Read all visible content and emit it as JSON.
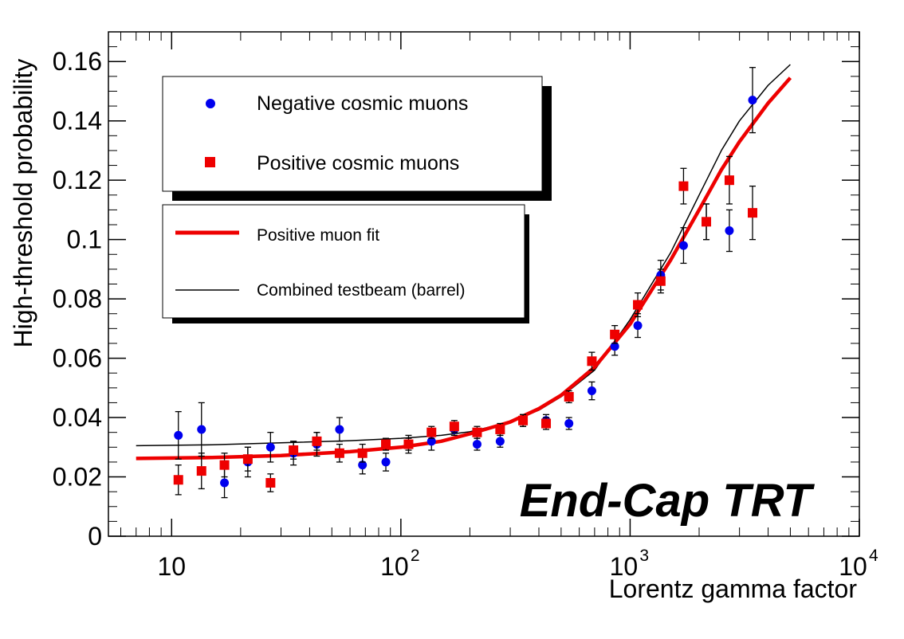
{
  "chart_data": {
    "type": "scatter",
    "xscale": "log",
    "xlim": [
      5.3,
      10000
    ],
    "ylim": [
      0,
      0.17
    ],
    "xlabel": "Lorentz gamma factor",
    "ylabel": "High-threshold probability",
    "annotation": "End-Cap TRT",
    "y_ticks": [
      {
        "value": 0,
        "label": "0"
      },
      {
        "value": 0.02,
        "label": "0.02"
      },
      {
        "value": 0.04,
        "label": "0.04"
      },
      {
        "value": 0.06,
        "label": "0.06"
      },
      {
        "value": 0.08,
        "label": "0.08"
      },
      {
        "value": 0.1,
        "label": "0.1"
      },
      {
        "value": 0.12,
        "label": "0.12"
      },
      {
        "value": 0.14,
        "label": "0.14"
      },
      {
        "value": 0.16,
        "label": "0.16"
      }
    ],
    "x_ticks": [
      {
        "value": 10,
        "base": "10",
        "exp": ""
      },
      {
        "value": 100,
        "base": "10",
        "exp": "2"
      },
      {
        "value": 1000,
        "base": "10",
        "exp": "3"
      },
      {
        "value": 10000,
        "base": "10",
        "exp": "4"
      }
    ],
    "legend_markers": [
      {
        "label": "Negative cosmic muons",
        "marker": "circle",
        "color": "#0000ee"
      },
      {
        "label": "Positive cosmic muons",
        "marker": "square",
        "color": "#ee0000"
      }
    ],
    "legend_lines": [
      {
        "label": "Positive muon fit",
        "color": "#ee0000",
        "width": "thick"
      },
      {
        "label": "Combined testbeam (barrel)",
        "color": "#000000",
        "width": "thin"
      }
    ],
    "series": [
      {
        "name": "Negative cosmic muons",
        "marker": "circle",
        "color": "#0000ee",
        "points": [
          {
            "x": 10.7,
            "y": 0.034,
            "err": 0.008
          },
          {
            "x": 13.5,
            "y": 0.036,
            "err": 0.009
          },
          {
            "x": 17.0,
            "y": 0.018,
            "err": 0.005
          },
          {
            "x": 21.5,
            "y": 0.025,
            "err": 0.005
          },
          {
            "x": 27.0,
            "y": 0.03,
            "err": 0.005
          },
          {
            "x": 34.0,
            "y": 0.028,
            "err": 0.004
          },
          {
            "x": 43.0,
            "y": 0.031,
            "err": 0.004
          },
          {
            "x": 54.0,
            "y": 0.036,
            "err": 0.004
          },
          {
            "x": 68.0,
            "y": 0.024,
            "err": 0.003
          },
          {
            "x": 86.0,
            "y": 0.025,
            "err": 0.003
          },
          {
            "x": 108,
            "y": 0.031,
            "err": 0.003
          },
          {
            "x": 136,
            "y": 0.032,
            "err": 0.003
          },
          {
            "x": 171,
            "y": 0.036,
            "err": 0.002
          },
          {
            "x": 215,
            "y": 0.031,
            "err": 0.002
          },
          {
            "x": 271,
            "y": 0.032,
            "err": 0.002
          },
          {
            "x": 341,
            "y": 0.039,
            "err": 0.002
          },
          {
            "x": 430,
            "y": 0.039,
            "err": 0.002
          },
          {
            "x": 541,
            "y": 0.038,
            "err": 0.002
          },
          {
            "x": 681,
            "y": 0.049,
            "err": 0.003
          },
          {
            "x": 857,
            "y": 0.064,
            "err": 0.003
          },
          {
            "x": 1080,
            "y": 0.071,
            "err": 0.004
          },
          {
            "x": 1360,
            "y": 0.088,
            "err": 0.005
          },
          {
            "x": 1710,
            "y": 0.098,
            "err": 0.006
          },
          {
            "x": 2150,
            "y": 0.106,
            "err": 0.006
          },
          {
            "x": 2710,
            "y": 0.103,
            "err": 0.007
          },
          {
            "x": 3420,
            "y": 0.147,
            "err": 0.011
          }
        ]
      },
      {
        "name": "Positive cosmic muons",
        "marker": "square",
        "color": "#ee0000",
        "points": [
          {
            "x": 10.7,
            "y": 0.019,
            "err": 0.005
          },
          {
            "x": 13.5,
            "y": 0.022,
            "err": 0.006
          },
          {
            "x": 17.0,
            "y": 0.024,
            "err": 0.004
          },
          {
            "x": 21.5,
            "y": 0.026,
            "err": 0.004
          },
          {
            "x": 27.0,
            "y": 0.018,
            "err": 0.003
          },
          {
            "x": 34.0,
            "y": 0.029,
            "err": 0.003
          },
          {
            "x": 43.0,
            "y": 0.032,
            "err": 0.003
          },
          {
            "x": 54.0,
            "y": 0.028,
            "err": 0.003
          },
          {
            "x": 68.0,
            "y": 0.028,
            "err": 0.003
          },
          {
            "x": 86.0,
            "y": 0.031,
            "err": 0.002
          },
          {
            "x": 108,
            "y": 0.031,
            "err": 0.002
          },
          {
            "x": 136,
            "y": 0.035,
            "err": 0.002
          },
          {
            "x": 171,
            "y": 0.037,
            "err": 0.002
          },
          {
            "x": 215,
            "y": 0.035,
            "err": 0.002
          },
          {
            "x": 271,
            "y": 0.036,
            "err": 0.002
          },
          {
            "x": 341,
            "y": 0.039,
            "err": 0.002
          },
          {
            "x": 430,
            "y": 0.038,
            "err": 0.002
          },
          {
            "x": 541,
            "y": 0.047,
            "err": 0.002
          },
          {
            "x": 681,
            "y": 0.059,
            "err": 0.003
          },
          {
            "x": 857,
            "y": 0.068,
            "err": 0.003
          },
          {
            "x": 1080,
            "y": 0.078,
            "err": 0.004
          },
          {
            "x": 1360,
            "y": 0.086,
            "err": 0.004
          },
          {
            "x": 1710,
            "y": 0.118,
            "err": 0.006
          },
          {
            "x": 2150,
            "y": 0.106,
            "err": 0.006
          },
          {
            "x": 2710,
            "y": 0.12,
            "err": 0.008
          },
          {
            "x": 3420,
            "y": 0.109,
            "err": 0.009
          }
        ]
      }
    ],
    "curves": [
      {
        "name": "Combined testbeam (barrel)",
        "color": "#000000",
        "points": [
          [
            7,
            0.0305
          ],
          [
            15,
            0.0308
          ],
          [
            30,
            0.0315
          ],
          [
            60,
            0.0322
          ],
          [
            100,
            0.033
          ],
          [
            150,
            0.034
          ],
          [
            200,
            0.0352
          ],
          [
            300,
            0.0385
          ],
          [
            400,
            0.0425
          ],
          [
            500,
            0.047
          ],
          [
            700,
            0.056
          ],
          [
            1000,
            0.073
          ],
          [
            1500,
            0.0955
          ],
          [
            2000,
            0.115
          ],
          [
            2500,
            0.13
          ],
          [
            3000,
            0.14
          ],
          [
            4000,
            0.152
          ],
          [
            5000,
            0.159
          ]
        ]
      },
      {
        "name": "Positive muon fit",
        "color": "#ee0000",
        "points": [
          [
            7,
            0.0262
          ],
          [
            15,
            0.0265
          ],
          [
            30,
            0.0272
          ],
          [
            60,
            0.0285
          ],
          [
            100,
            0.03
          ],
          [
            150,
            0.032
          ],
          [
            200,
            0.0345
          ],
          [
            300,
            0.0385
          ],
          [
            400,
            0.043
          ],
          [
            500,
            0.0475
          ],
          [
            700,
            0.057
          ],
          [
            1000,
            0.0715
          ],
          [
            1500,
            0.093
          ],
          [
            2000,
            0.11
          ],
          [
            2500,
            0.1235
          ],
          [
            3000,
            0.133
          ],
          [
            4000,
            0.146
          ],
          [
            5000,
            0.1545
          ]
        ]
      }
    ]
  }
}
